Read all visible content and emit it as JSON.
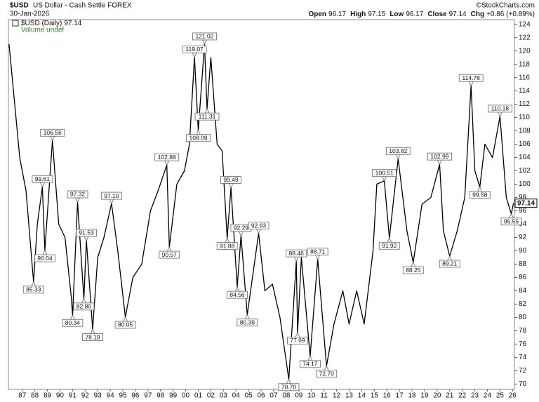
{
  "header": {
    "symbol": "$USD",
    "name": "US Dollar - Cash Settle FOREX",
    "copyright": "©StockCharts.com",
    "date": "30-Jan-2026",
    "quote": [
      {
        "label": "Open",
        "value": "96.17"
      },
      {
        "label": "High",
        "value": "97.15"
      },
      {
        "label": "Low",
        "value": "96.17"
      },
      {
        "label": "Close",
        "value": "97.14"
      },
      {
        "label": "Chg",
        "value": "+0.86 (+0.89%)"
      }
    ]
  },
  "chart_data": {
    "type": "line",
    "series": [
      {
        "name": "$USD (Daily)",
        "color": "#000000",
        "x": [
          1985.95,
          1986.3,
          1986.8,
          1987.3,
          1987.9,
          1988.2,
          1988.6,
          1988.8,
          1989.4,
          1989.9,
          1990.4,
          1990.9,
          1991.0,
          1991.4,
          1991.9,
          1992.1,
          1992.6,
          1993.0,
          1993.5,
          1994.1,
          1994.6,
          1995.2,
          1995.8,
          1996.5,
          1997.2,
          1997.8,
          1998.5,
          1998.7,
          1999.3,
          1999.9,
          2000.3,
          2000.7,
          2001.0,
          2001.5,
          2001.7,
          2002.0,
          2002.5,
          2002.9,
          2003.3,
          2003.6,
          2004.1,
          2004.4,
          2004.9,
          2005.8,
          2006.3,
          2006.9,
          2007.5,
          2008.2,
          2008.8,
          2008.9,
          2009.2,
          2009.9,
          2010.5,
          2011.2,
          2011.8,
          2012.5,
          2013.0,
          2013.6,
          2014.2,
          2014.9,
          2015.2,
          2015.8,
          2016.2,
          2016.9,
          2017.6,
          2018.1,
          2018.8,
          2019.5,
          2020.2,
          2020.5,
          2021.0,
          2021.6,
          2022.2,
          2022.7,
          2023.0,
          2023.4,
          2023.8,
          2024.4,
          2025.0,
          2025.5,
          2025.9,
          2026.08
        ],
        "values": [
          121,
          114,
          104,
          99,
          85.33,
          94,
          99.61,
          90.04,
          106.56,
          94,
          92,
          83,
          80.34,
          97.32,
          82.8,
          91.53,
          78.19,
          89,
          92,
          97.1,
          90,
          80.05,
          86,
          88,
          96,
          99,
          102.88,
          90.57,
          100,
          102,
          106,
          119.07,
          108.09,
          121.02,
          111.31,
          119,
          106,
          105,
          91.88,
          99.49,
          84.56,
          92.29,
          80.39,
          92.63,
          84,
          85,
          80,
          70.7,
          88.46,
          77.69,
          89,
          74.17,
          88.71,
          72.7,
          79,
          84,
          79,
          84,
          79,
          90,
          100,
          100.51,
          91.92,
          103.82,
          93,
          88.25,
          97,
          98,
          102.99,
          93,
          89.21,
          93,
          98,
          114.78,
          102,
          99.58,
          106,
          104,
          110.18,
          98,
          95.55,
          97.14
        ]
      }
    ],
    "annotations": {
      "x": [
        1987.9,
        1988.6,
        1988.8,
        1989.4,
        1991.0,
        1991.4,
        1991.9,
        1992.1,
        1992.6,
        1994.1,
        1995.2,
        1998.5,
        1998.7,
        2000.7,
        2001.0,
        2001.5,
        2001.7,
        2003.3,
        2003.6,
        2004.1,
        2004.4,
        2004.9,
        2005.8,
        2008.2,
        2008.8,
        2008.9,
        2009.9,
        2010.5,
        2011.2,
        2015.8,
        2016.2,
        2016.9,
        2018.1,
        2020.2,
        2021.0,
        2022.7,
        2023.4,
        2025.0,
        2025.9
      ],
      "values": [
        85.33,
        99.61,
        90.04,
        106.56,
        80.34,
        97.32,
        82.8,
        91.53,
        78.19,
        97.1,
        80.05,
        102.88,
        90.57,
        119.07,
        108.09,
        121.02,
        111.31,
        91.88,
        99.49,
        84.56,
        92.29,
        80.39,
        92.63,
        70.7,
        88.46,
        77.69,
        74.17,
        88.71,
        72.7,
        100.51,
        91.92,
        103.82,
        88.25,
        102.99,
        89.21,
        114.78,
        99.58,
        110.18,
        95.55
      ],
      "value_labels": [
        "85.33",
        "99.61",
        "90.04",
        "106.56",
        "80.34",
        "97.32",
        "82.80",
        "91.53",
        "78.19",
        "97.10",
        "80.05",
        "102.88",
        "90.57",
        "119.07",
        "108.09",
        "121.02",
        "111.31",
        "91.88",
        "99.49",
        "84.56",
        "92.29",
        "80.39",
        "92.63",
        "70.70",
        "88.46",
        "77.69",
        "74.17",
        "88.71",
        "72.70",
        "100.51",
        "91.92",
        "103.82",
        "88.25",
        "102.99",
        "89.21",
        "114.78",
        "99.58",
        "110.18",
        "95.55"
      ]
    },
    "last_price": 97.14,
    "volume_note": "Volume undef",
    "xlim": [
      1985.9,
      2026.15
    ],
    "xticks": [
      {
        "value": 1987,
        "label": "87"
      },
      {
        "value": 1988,
        "label": "88"
      },
      {
        "value": 1989,
        "label": "89"
      },
      {
        "value": 1990,
        "label": "90"
      },
      {
        "value": 1991,
        "label": "91"
      },
      {
        "value": 1992,
        "label": "92"
      },
      {
        "value": 1993,
        "label": "93"
      },
      {
        "value": 1994,
        "label": "94"
      },
      {
        "value": 1995,
        "label": "95"
      },
      {
        "value": 1996,
        "label": "96"
      },
      {
        "value": 1997,
        "label": "97"
      },
      {
        "value": 1998,
        "label": "98"
      },
      {
        "value": 1999,
        "label": "99"
      },
      {
        "value": 2000,
        "label": "00"
      },
      {
        "value": 2001,
        "label": "01"
      },
      {
        "value": 2002,
        "label": "02"
      },
      {
        "value": 2003,
        "label": "03"
      },
      {
        "value": 2004,
        "label": "04"
      },
      {
        "value": 2005,
        "label": "05"
      },
      {
        "value": 2006,
        "label": "06"
      },
      {
        "value": 2007,
        "label": "07"
      },
      {
        "value": 2008,
        "label": "08"
      },
      {
        "value": 2009,
        "label": "09"
      },
      {
        "value": 2010,
        "label": "10"
      },
      {
        "value": 2011,
        "label": "11"
      },
      {
        "value": 2012,
        "label": "12"
      },
      {
        "value": 2013,
        "label": "13"
      },
      {
        "value": 2014,
        "label": "14"
      },
      {
        "value": 2015,
        "label": "15"
      },
      {
        "value": 2016,
        "label": "16"
      },
      {
        "value": 2017,
        "label": "17"
      },
      {
        "value": 2018,
        "label": "18"
      },
      {
        "value": 2019,
        "label": "19"
      },
      {
        "value": 2020,
        "label": "20"
      },
      {
        "value": 2021,
        "label": "21"
      },
      {
        "value": 2022,
        "label": "22"
      },
      {
        "value": 2023,
        "label": "23"
      },
      {
        "value": 2024,
        "label": "24"
      },
      {
        "value": 2025,
        "label": "25"
      },
      {
        "value": 2026,
        "label": "26"
      }
    ],
    "ylim": [
      69.2,
      124.7
    ],
    "yticks": [
      70,
      72,
      74,
      76,
      78,
      80,
      82,
      84,
      86,
      88,
      90,
      92,
      94,
      96,
      98,
      100,
      102,
      104,
      106,
      108,
      110,
      112,
      114,
      116,
      118,
      120,
      122,
      124
    ],
    "grid": false
  }
}
